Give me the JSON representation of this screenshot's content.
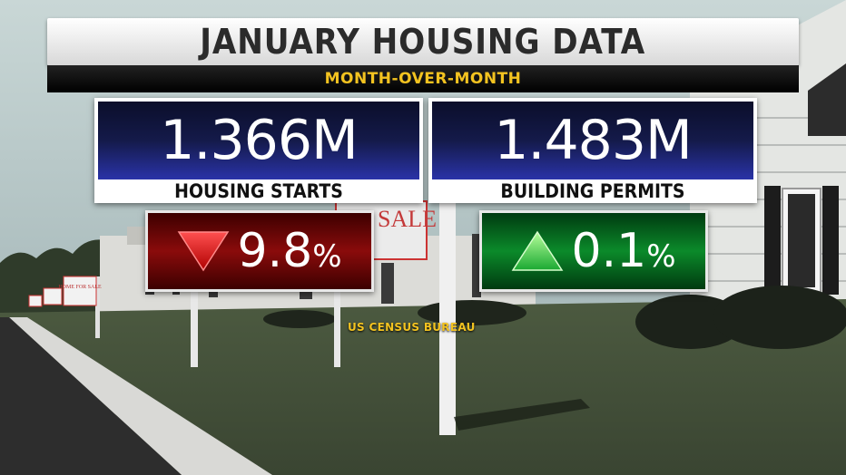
{
  "header": {
    "title": "JANUARY HOUSING DATA",
    "subtitle": "MONTH-OVER-MONTH"
  },
  "stats": [
    {
      "value": "1.366M",
      "label": "HOUSING STARTS",
      "change": "9.8",
      "change_unit": "%",
      "direction": "down",
      "color": "#8a0b0b"
    },
    {
      "value": "1.483M",
      "label": "BUILDING PERMITS",
      "change": "0.1",
      "change_unit": "%",
      "direction": "up",
      "color": "#0b8a2a"
    }
  ],
  "background": {
    "sign_text": "FOR SALE",
    "small_sign_text": "HOME FOR SALE"
  },
  "source": "US CENSUS BUREAU",
  "colors": {
    "accent": "#f3c320",
    "stat_blue": "#2a33a8"
  }
}
